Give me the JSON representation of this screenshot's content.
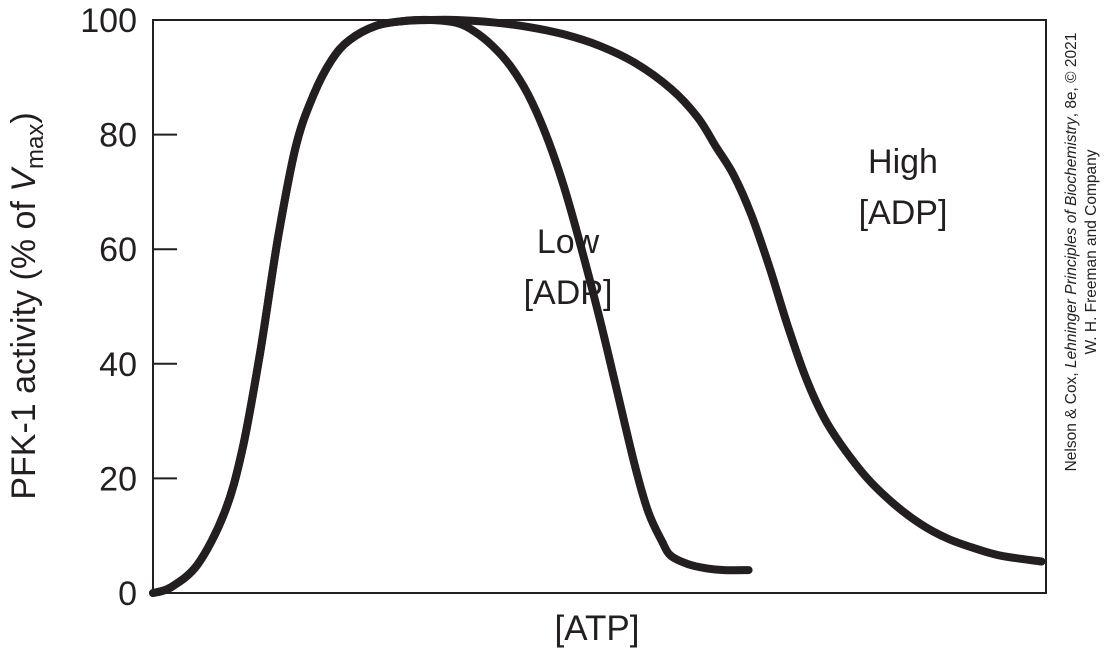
{
  "chart_data": {
    "type": "line",
    "title": "",
    "xlabel": "[ATP]",
    "ylabel": {
      "prefix": "PFK-1 activity (% of ",
      "v": "V",
      "sub": "max",
      "suffix": ")"
    },
    "xlim": [
      0,
      100
    ],
    "ylim": [
      0,
      100
    ],
    "yticks": [
      "0",
      "20",
      "40",
      "60",
      "80",
      "100"
    ],
    "grid": false,
    "series": [
      {
        "name": "Low [ADP]",
        "label_lines": [
          "Low",
          "[ADP]"
        ],
        "color": "#231f20",
        "x": [
          0,
          2,
          5,
          8,
          10,
          12,
          14,
          16,
          18,
          20,
          22,
          25,
          28,
          31,
          34,
          36,
          38,
          40,
          42,
          44,
          46,
          48,
          50,
          52,
          54,
          55.5,
          57,
          58,
          60,
          62,
          64,
          66.7
        ],
        "y": [
          0,
          1,
          5,
          14,
          25,
          42,
          62,
          78,
          87,
          93,
          96.5,
          99,
          99.8,
          100,
          99.5,
          98,
          95.5,
          92,
          87,
          80,
          71,
          60,
          48,
          35,
          22,
          14,
          9,
          6.5,
          5,
          4.3,
          4,
          4
        ]
      },
      {
        "name": "High [ADP]",
        "label_lines": [
          "High",
          "[ADP]"
        ],
        "color": "#231f20",
        "x": [
          0,
          2,
          5,
          8,
          10,
          12,
          14,
          16,
          18,
          20,
          22,
          25,
          28,
          31,
          34,
          38,
          42,
          46,
          50,
          54,
          58,
          61,
          63,
          65,
          67,
          69,
          71,
          73,
          75,
          77,
          80,
          83,
          86,
          89,
          92,
          95,
          99.5
        ],
        "y": [
          0,
          1,
          5,
          14,
          25,
          42,
          62,
          78,
          87,
          93,
          96.5,
          99,
          99.8,
          100,
          100,
          99.6,
          98.8,
          97.5,
          95.5,
          92.5,
          88,
          83,
          78,
          73,
          66,
          57,
          47,
          38,
          31,
          26,
          20,
          15.5,
          12,
          9.5,
          7.8,
          6.5,
          5.5
        ]
      }
    ]
  },
  "credit": {
    "line1_prefix": "Nelson & Cox, ",
    "line1_italic": "Lehninger Principles of Biochemistry",
    "line1_suffix": ", 8e, © 2021",
    "line2": "W. H. Freeman and Company"
  }
}
